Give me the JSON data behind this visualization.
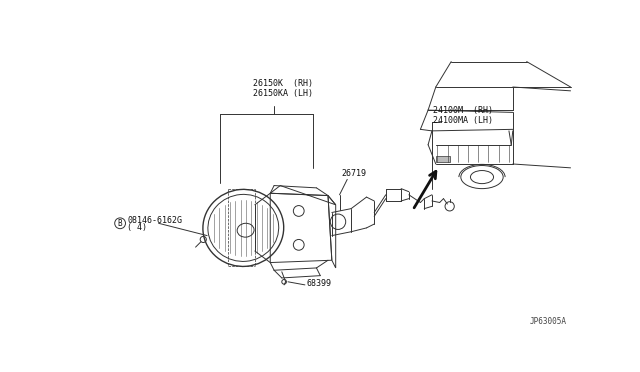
{
  "background_color": "#ffffff",
  "line_color": "#333333",
  "text_color": "#111111",
  "fig_width": 6.4,
  "fig_height": 3.72,
  "dpi": 100,
  "labels": {
    "part1_line1": "26150K  (RH)",
    "part1_line2": "26150KA (LH)",
    "part2_line1": "24100M  (RH)",
    "part2_line2": "24100MA (LH)",
    "part3": "26719",
    "part4_line1": "08146-6162G",
    "part4_line2": "( 4)",
    "part4_circle": "B",
    "part5": "68399",
    "ref_code": "JP63005A"
  },
  "font_size_labels": 6.0,
  "font_size_ref": 5.5
}
